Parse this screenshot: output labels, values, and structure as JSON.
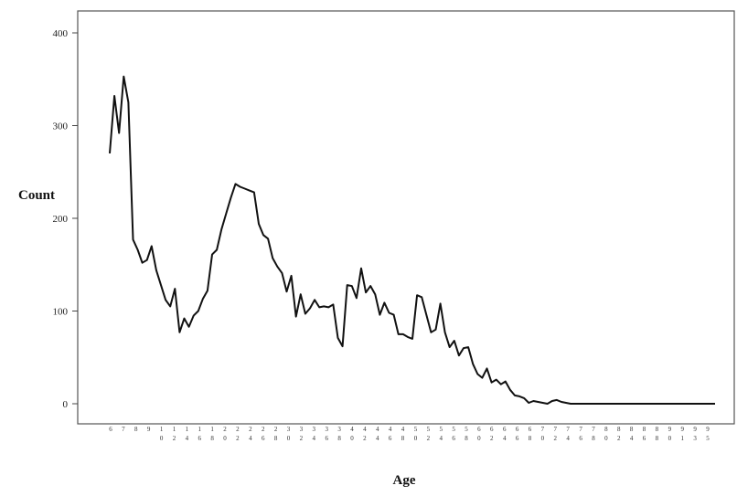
{
  "chart_data": {
    "type": "line",
    "xlabel": "Age",
    "ylabel": "Count",
    "ylim": [
      0,
      400
    ],
    "y_ticks": [
      "0",
      "100",
      "200",
      "300",
      "400"
    ],
    "grid": false,
    "series_color": "#111111",
    "x": [
      6,
      7,
      8,
      9,
      10,
      11,
      12,
      13,
      14,
      15,
      16,
      17,
      18,
      19,
      20,
      21,
      22,
      23,
      24,
      25,
      26,
      27,
      28,
      29,
      30,
      31,
      32,
      33,
      34,
      35,
      36,
      37,
      38,
      39,
      40,
      41,
      42,
      43,
      44,
      45,
      46,
      47,
      48,
      49,
      50,
      51,
      52,
      53,
      54,
      55,
      56,
      57,
      58,
      59,
      60,
      61,
      62,
      63,
      64,
      65,
      66,
      67,
      68,
      69,
      70,
      71,
      72,
      73,
      74,
      75,
      76,
      77,
      78,
      79,
      80,
      81,
      82,
      83,
      84,
      85,
      86,
      87,
      88,
      89,
      90,
      91,
      92,
      93,
      94,
      95,
      96,
      97,
      98,
      99,
      100,
      101,
      102,
      103,
      104,
      105,
      106,
      107,
      108,
      109,
      110,
      111,
      112,
      113,
      114,
      115,
      116,
      117,
      118,
      119,
      120,
      121,
      122,
      123,
      124,
      125,
      126,
      127,
      128,
      129,
      130,
      131,
      132,
      133,
      134,
      135,
      136
    ],
    "values": [
      270,
      332,
      292,
      353,
      325,
      177,
      166,
      152,
      155,
      170,
      144,
      128,
      112,
      105,
      124,
      77,
      92,
      83,
      95,
      100,
      113,
      122,
      161,
      166,
      188,
      205,
      222,
      237,
      234,
      232,
      230,
      228,
      194,
      182,
      178,
      157,
      148,
      141,
      121,
      138,
      94,
      118,
      97,
      103,
      112,
      104,
      105,
      104,
      107,
      71,
      62,
      128,
      127,
      114,
      146,
      120,
      127,
      118,
      96,
      109,
      98,
      96,
      75,
      75,
      72,
      70,
      117,
      115,
      96,
      77,
      80,
      108,
      77,
      61,
      68,
      52,
      60,
      61,
      43,
      32,
      28,
      38,
      23,
      26,
      21,
      24,
      15,
      9,
      8,
      6,
      1,
      3,
      2,
      1,
      0,
      3,
      4,
      2,
      1,
      0,
      0,
      0,
      0,
      0,
      0,
      0,
      0,
      0,
      0,
      0,
      0,
      0,
      0,
      0,
      0,
      0,
      0,
      0,
      0,
      0,
      0,
      0,
      0,
      0,
      0,
      0,
      0,
      0,
      0,
      0,
      0
    ],
    "x_tick_labels": [
      [
        "6",
        ""
      ],
      [
        "7",
        ""
      ],
      [
        "8",
        ""
      ],
      [
        "9",
        ""
      ],
      [
        "1",
        "0"
      ],
      [
        "1",
        "2"
      ],
      [
        "1",
        "4"
      ],
      [
        "1",
        "6"
      ],
      [
        "1",
        "8"
      ],
      [
        "2",
        "0"
      ],
      [
        "2",
        "2"
      ],
      [
        "2",
        "4"
      ],
      [
        "2",
        "6"
      ],
      [
        "2",
        "8"
      ],
      [
        "3",
        "0"
      ],
      [
        "3",
        "2"
      ],
      [
        "3",
        "4"
      ],
      [
        "3",
        "6"
      ],
      [
        "3",
        "8"
      ],
      [
        "4",
        "0"
      ],
      [
        "4",
        "2"
      ],
      [
        "4",
        "4"
      ],
      [
        "4",
        "6"
      ],
      [
        "4",
        "8"
      ],
      [
        "5",
        "0"
      ],
      [
        "5",
        "2"
      ],
      [
        "5",
        "4"
      ],
      [
        "5",
        "6"
      ],
      [
        "5",
        "8"
      ],
      [
        "6",
        "0"
      ],
      [
        "6",
        "2"
      ],
      [
        "6",
        "4"
      ],
      [
        "6",
        "6"
      ],
      [
        "6",
        "8"
      ],
      [
        "7",
        "0"
      ],
      [
        "7",
        "2"
      ],
      [
        "7",
        "4"
      ],
      [
        "7",
        "6"
      ],
      [
        "7",
        "8"
      ],
      [
        "8",
        "0"
      ],
      [
        "8",
        "2"
      ],
      [
        "8",
        "4"
      ],
      [
        "8",
        "6"
      ],
      [
        "8",
        "8"
      ],
      [
        "9",
        "0"
      ],
      [
        "9",
        "1"
      ],
      [
        "9",
        "3"
      ],
      [
        "9",
        "5"
      ]
    ]
  }
}
